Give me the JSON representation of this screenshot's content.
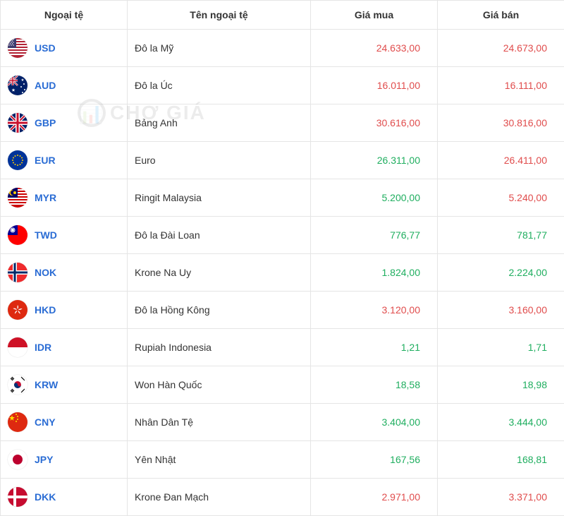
{
  "table": {
    "headers": {
      "currency": "Ngoại tệ",
      "name": "Tên ngoại tệ",
      "buy": "Giá mua",
      "sell": "Giá bán"
    },
    "colors": {
      "up": "#1fae5f",
      "down": "#e04c4c",
      "code": "#2a6cd4",
      "border": "#e5e5e5",
      "text": "#333333",
      "background": "#ffffff"
    },
    "rows": [
      {
        "code": "USD",
        "name": "Đô la Mỹ",
        "buy": "24.633,00",
        "buy_dir": "down",
        "sell": "24.673,00",
        "sell_dir": "down",
        "flag": "us"
      },
      {
        "code": "AUD",
        "name": "Đô la Úc",
        "buy": "16.011,00",
        "buy_dir": "down",
        "sell": "16.111,00",
        "sell_dir": "down",
        "flag": "au"
      },
      {
        "code": "GBP",
        "name": "Bảng Anh",
        "buy": "30.616,00",
        "buy_dir": "down",
        "sell": "30.816,00",
        "sell_dir": "down",
        "flag": "gb"
      },
      {
        "code": "EUR",
        "name": "Euro",
        "buy": "26.311,00",
        "buy_dir": "up",
        "sell": "26.411,00",
        "sell_dir": "down",
        "flag": "eu"
      },
      {
        "code": "MYR",
        "name": "Ringit Malaysia",
        "buy": "5.200,00",
        "buy_dir": "up",
        "sell": "5.240,00",
        "sell_dir": "down",
        "flag": "my"
      },
      {
        "code": "TWD",
        "name": "Đô la Đài Loan",
        "buy": "776,77",
        "buy_dir": "up",
        "sell": "781,77",
        "sell_dir": "up",
        "flag": "tw"
      },
      {
        "code": "NOK",
        "name": "Krone Na Uy",
        "buy": "1.824,00",
        "buy_dir": "up",
        "sell": "2.224,00",
        "sell_dir": "up",
        "flag": "no"
      },
      {
        "code": "HKD",
        "name": "Đô la Hồng Kông",
        "buy": "3.120,00",
        "buy_dir": "down",
        "sell": "3.160,00",
        "sell_dir": "down",
        "flag": "hk"
      },
      {
        "code": "IDR",
        "name": "Rupiah Indonesia",
        "buy": "1,21",
        "buy_dir": "up",
        "sell": "1,71",
        "sell_dir": "up",
        "flag": "id"
      },
      {
        "code": "KRW",
        "name": "Won Hàn Quốc",
        "buy": "18,58",
        "buy_dir": "up",
        "sell": "18,98",
        "sell_dir": "up",
        "flag": "kr"
      },
      {
        "code": "CNY",
        "name": "Nhân Dân Tệ",
        "buy": "3.404,00",
        "buy_dir": "up",
        "sell": "3.444,00",
        "sell_dir": "up",
        "flag": "cn"
      },
      {
        "code": "JPY",
        "name": "Yên Nhật",
        "buy": "167,56",
        "buy_dir": "up",
        "sell": "168,81",
        "sell_dir": "up",
        "flag": "jp"
      },
      {
        "code": "DKK",
        "name": "Krone Đan Mạch",
        "buy": "2.971,00",
        "buy_dir": "down",
        "sell": "3.371,00",
        "sell_dir": "down",
        "flag": "dk"
      }
    ]
  },
  "watermark": {
    "text": "CHỢ GIÁ"
  }
}
